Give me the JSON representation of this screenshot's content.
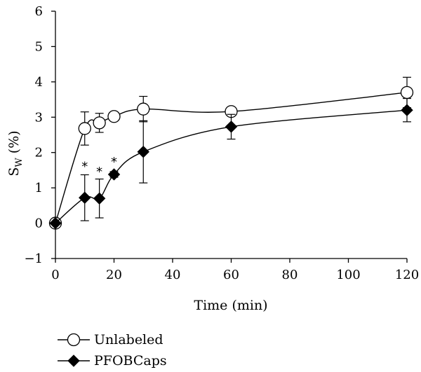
{
  "chart_data": {
    "type": "line",
    "xlabel": "Time (min)",
    "ylabel_main": "S",
    "ylabel_sub": "W",
    "ylabel_unit": "(%)",
    "xlim": [
      0,
      120
    ],
    "ylim": [
      -1,
      6
    ],
    "xticks": [
      0,
      20,
      40,
      60,
      80,
      100,
      120
    ],
    "yticks": [
      -1,
      0,
      1,
      2,
      3,
      4,
      5,
      6
    ],
    "grid": false,
    "legend_position": "bottom-left",
    "series": [
      {
        "name": "Unlabeled",
        "marker": "open-circle",
        "x": [
          0,
          10,
          15,
          20,
          30,
          60,
          120
        ],
        "y": [
          0,
          2.68,
          2.84,
          3.02,
          3.23,
          3.16,
          3.7
        ],
        "err": [
          0,
          0.47,
          0.27,
          0.12,
          0.36,
          0.05,
          0.43
        ]
      },
      {
        "name": "PFOBCaps",
        "marker": "filled-diamond",
        "x": [
          0,
          10,
          15,
          20,
          30,
          60,
          120
        ],
        "y": [
          0,
          0.72,
          0.7,
          1.38,
          2.02,
          2.73,
          3.2
        ],
        "err": [
          0,
          0.65,
          0.55,
          0.08,
          0.88,
          0.35,
          0.33
        ]
      }
    ],
    "annotations": [
      {
        "text": "*",
        "x": 10,
        "y": 1.65
      },
      {
        "text": "*",
        "x": 15,
        "y": 1.5
      },
      {
        "text": "*",
        "x": 20,
        "y": 1.78
      }
    ]
  }
}
